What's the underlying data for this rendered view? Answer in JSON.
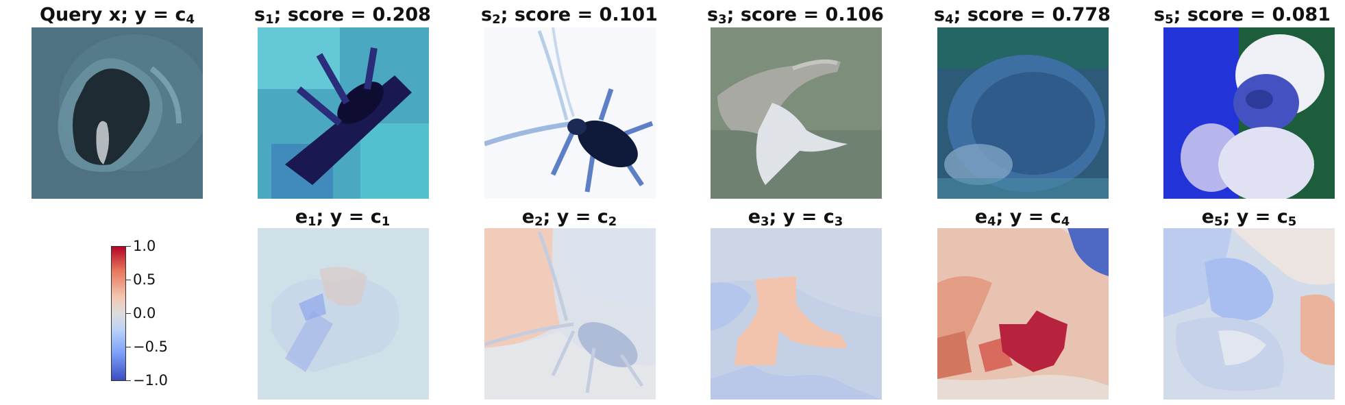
{
  "query": {
    "title_main": "Query x; y = c",
    "title_sub": "4",
    "image": "dark-cave-or-alcove-icon"
  },
  "samples": [
    {
      "title_main": "s",
      "title_sub": "1",
      "title_rest": "; score = 0.208",
      "score": 0.208,
      "image": "dark-insect-on-cyan-background"
    },
    {
      "title_main": "s",
      "title_sub": "2",
      "title_rest": "; score = 0.101",
      "score": 0.101,
      "image": "black-beetle-on-white"
    },
    {
      "title_main": "s",
      "title_sub": "3",
      "title_rest": "; score = 0.106",
      "score": 0.106,
      "image": "dolphin-leaping"
    },
    {
      "title_main": "s",
      "title_sub": "4",
      "title_rest": "; score = 0.778",
      "score": 0.778,
      "image": "hedgehog-blue-tone"
    },
    {
      "title_main": "s",
      "title_sub": "5",
      "title_rest": "; score = 0.081",
      "score": 0.081,
      "image": "monkey-blue-tone"
    }
  ],
  "explanations": [
    {
      "label_main": "e",
      "label_sub": "1",
      "label_mid": "; y = c",
      "label_sub2": "1",
      "image": "attribution-map-1"
    },
    {
      "label_main": "e",
      "label_sub": "2",
      "label_mid": "; y = c",
      "label_sub2": "2",
      "image": "attribution-map-2"
    },
    {
      "label_main": "e",
      "label_sub": "3",
      "label_mid": "; y = c",
      "label_sub2": "3",
      "image": "attribution-map-3"
    },
    {
      "label_main": "e",
      "label_sub": "4",
      "label_mid": "; y = c",
      "label_sub2": "4",
      "image": "attribution-map-4"
    },
    {
      "label_main": "e",
      "label_sub": "5",
      "label_mid": "; y = c",
      "label_sub2": "5",
      "image": "attribution-map-5"
    }
  ],
  "colorbar": {
    "ticks": [
      "1.0",
      "0.5",
      "0.0",
      "−0.5",
      "−1.0"
    ],
    "colormap": "coolwarm",
    "min": -1.0,
    "max": 1.0,
    "colors": {
      "high": "#b40426",
      "mid": "#dddcdc",
      "low": "#3b4cc0"
    }
  }
}
